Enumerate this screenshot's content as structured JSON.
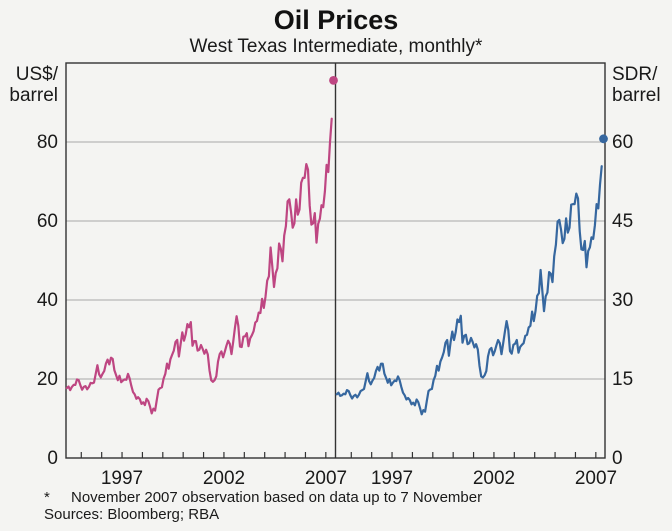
{
  "title": "Oil Prices",
  "subtitle": "West Texas Intermediate, monthly*",
  "footnote": {
    "marker": "*",
    "text": "November 2007 observation based on data up to 7 November",
    "sources": "Sources: Bloomberg; RBA"
  },
  "left_axis": {
    "unit_line1": "US$/",
    "unit_line2": "barrel",
    "tick_0": 0,
    "tick_1": 20,
    "tick_2": 40,
    "tick_3": 60,
    "tick_4": 80
  },
  "right_axis": {
    "unit_line1": "SDR/",
    "unit_line2": "barrel",
    "tick_0": 0,
    "tick_1": 15,
    "tick_2": 30,
    "tick_3": 45,
    "tick_4": 60
  },
  "x_axis": {
    "label_0": "1997",
    "label_1": "2002",
    "label_2": "2007"
  },
  "colors": {
    "usd_line": "#be4682",
    "sdr_line": "#36679f",
    "gridline": "#a8a8a8",
    "frame": "#333333",
    "background": "#f4f4f2"
  },
  "chart_data": {
    "type": "line",
    "title": "Oil Prices",
    "subtitle": "West Texas Intermediate, monthly*",
    "x": {
      "domain_start": 1994.75,
      "domain_end": 2007.95,
      "series_start": 1994.79,
      "points_per_year": 12,
      "tick_years": [
        1995.5,
        1996.5,
        1997.5,
        1998.5,
        1999.5,
        2000.5,
        2001.5,
        2002.5,
        2003.5,
        2004.5,
        2005.5,
        2006.5,
        2007.5
      ],
      "year_label_positions": [
        1997.5,
        2002.5,
        2007.5
      ],
      "year_labels": [
        "1997",
        "2002",
        "2007"
      ]
    },
    "panels": [
      {
        "name": "US$/barrel",
        "color": "#be4682",
        "ylim": [
          0,
          100
        ],
        "yticks": [
          0,
          20,
          40,
          60,
          80
        ],
        "values": [
          17.7,
          18.1,
          17.2,
          18.0,
          18.5,
          18.5,
          19.9,
          19.7,
          18.4,
          17.3,
          18.0,
          18.2,
          17.4,
          18.0,
          19.0,
          18.9,
          19.1,
          21.3,
          23.5,
          21.2,
          20.4,
          21.3,
          22.0,
          23.9,
          24.9,
          23.7,
          25.4,
          25.1,
          22.2,
          21.0,
          19.7,
          20.8,
          19.2,
          19.6,
          19.9,
          19.8,
          21.3,
          20.2,
          18.3,
          16.7,
          16.1,
          15.0,
          15.4,
          14.9,
          13.7,
          14.1,
          13.4,
          15.0,
          14.4,
          13.0,
          11.3,
          12.5,
          12.0,
          14.7,
          17.3,
          17.7,
          17.9,
          20.1,
          21.3,
          23.9,
          22.6,
          25.0,
          26.1,
          27.2,
          29.4,
          29.9,
          25.7,
          28.8,
          31.8,
          29.7,
          31.3,
          33.9,
          33.1,
          34.4,
          28.4,
          29.6,
          29.6,
          27.2,
          27.4,
          28.6,
          27.6,
          26.4,
          27.4,
          26.2,
          22.2,
          19.7,
          19.3,
          19.7,
          20.7,
          24.4,
          26.3,
          27.0,
          25.5,
          26.9,
          28.4,
          29.7,
          28.9,
          26.3,
          29.4,
          32.9,
          35.9,
          33.5,
          28.2,
          28.1,
          30.7,
          30.8,
          31.6,
          28.3,
          30.3,
          31.1,
          32.1,
          34.3,
          34.7,
          36.8,
          36.7,
          40.3,
          38.0,
          40.8,
          44.9,
          46.0,
          53.3,
          48.5,
          43.3,
          46.8,
          48.0,
          54.3,
          53.0,
          49.8,
          56.3,
          58.7,
          65.0,
          65.5,
          62.4,
          58.3,
          59.4,
          65.5,
          61.6,
          62.9,
          69.7,
          70.9,
          70.9,
          74.4,
          73.0,
          63.9,
          59.1,
          59.4,
          62.0,
          54.5,
          59.3,
          60.6,
          64.0,
          63.5,
          67.5,
          74.2,
          72.4,
          79.9,
          85.9
        ],
        "dot": {
          "label": "November 2007 observation",
          "t": 2007.875,
          "value": 95.6
        }
      },
      {
        "name": "SDR/barrel",
        "color": "#36679f",
        "ylim": [
          0,
          75
        ],
        "yticks": [
          0,
          15,
          30,
          45,
          60
        ],
        "values": [
          12.1,
          12.4,
          11.8,
          11.9,
          12.2,
          12.1,
          12.9,
          12.7,
          11.9,
          11.3,
          11.8,
          12.0,
          11.5,
          12.0,
          12.7,
          12.9,
          13.1,
          14.6,
          16.1,
          14.6,
          14.0,
          14.7,
          15.2,
          16.5,
          17.3,
          16.6,
          17.9,
          17.9,
          16.0,
          15.2,
          14.3,
          15.0,
          13.8,
          14.3,
          14.7,
          14.6,
          15.5,
          14.8,
          13.5,
          12.4,
          11.9,
          11.1,
          11.4,
          11.0,
          10.2,
          10.5,
          10.0,
          11.1,
          10.6,
          9.5,
          8.3,
          9.1,
          8.8,
          10.8,
          12.7,
          13.0,
          13.1,
          14.8,
          15.6,
          17.5,
          16.6,
          18.3,
          19.1,
          20.1,
          21.9,
          22.4,
          19.4,
          22.0,
          24.0,
          22.4,
          23.9,
          26.3,
          25.8,
          27.0,
          21.9,
          23.2,
          23.4,
          21.6,
          21.8,
          22.8,
          22.0,
          21.0,
          21.6,
          20.6,
          17.5,
          15.5,
          15.3,
          15.7,
          16.5,
          19.3,
          20.6,
          20.9,
          19.5,
          20.3,
          21.4,
          22.4,
          21.8,
          19.7,
          21.8,
          24.0,
          26.0,
          24.3,
          20.3,
          19.8,
          21.5,
          21.7,
          22.4,
          20.0,
          21.1,
          21.5,
          21.8,
          23.2,
          23.4,
          24.8,
          25.1,
          27.8,
          26.0,
          27.9,
          30.8,
          31.3,
          35.7,
          31.8,
          27.9,
          30.7,
          31.4,
          35.3,
          35.0,
          33.4,
          38.3,
          40.5,
          44.9,
          45.2,
          43.4,
          40.8,
          41.6,
          45.5,
          42.8,
          43.7,
          48.1,
          48.2,
          48.2,
          50.2,
          49.3,
          43.1,
          39.6,
          39.5,
          41.2,
          36.2,
          39.3,
          40.0,
          41.9,
          41.6,
          44.2,
          48.2,
          47.4,
          51.9,
          55.4
        ],
        "dot": {
          "label": "November 2007 observation",
          "t": 2007.875,
          "value": 60.6
        }
      }
    ]
  }
}
